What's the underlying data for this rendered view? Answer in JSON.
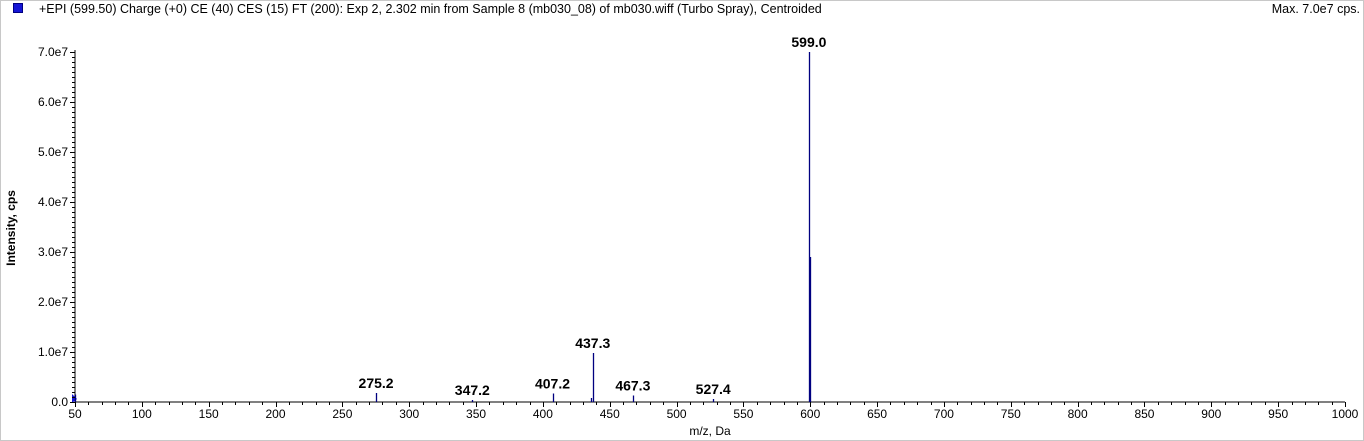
{
  "header": {
    "title": "+EPI (599.50) Charge (+0) CE (40) CES (15) FT (200): Exp 2, 2.302 min from Sample 8 (mb030_08) of mb030.wiff (Turbo Spray), Centroided",
    "max_label": "Max. 7.0e7 cps."
  },
  "colors": {
    "accent": "#000080",
    "legend_fill": "#1515d6"
  },
  "chart_data": {
    "type": "bar",
    "title": "+EPI (599.50) Charge (+0) CE (40) CES (15) FT (200): Exp 2, 2.302 min from Sample 8 (mb030_08) of mb030.wiff (Turbo Spray), Centroided",
    "xlabel": "m/z, Da",
    "ylabel": "Intensity, cps",
    "xlim": [
      50,
      1000
    ],
    "ylim": [
      0,
      70000000
    ],
    "xticks": [
      50,
      100,
      150,
      200,
      250,
      300,
      350,
      400,
      450,
      500,
      550,
      600,
      650,
      700,
      750,
      800,
      850,
      900,
      950,
      1000
    ],
    "yticks": [
      0,
      10000000,
      20000000,
      30000000,
      40000000,
      50000000,
      60000000,
      70000000
    ],
    "ytick_labels": [
      "0.0",
      "1.0e7",
      "2.0e7",
      "3.0e7",
      "4.0e7",
      "5.0e7",
      "6.0e7",
      "7.0e7"
    ],
    "grid": false,
    "peaks": [
      {
        "mz": 50.0,
        "intensity": 1500000
      },
      {
        "mz": 275.2,
        "intensity": 1800000,
        "label": "275.2"
      },
      {
        "mz": 347.2,
        "intensity": 400000,
        "label": "347.2"
      },
      {
        "mz": 407.2,
        "intensity": 1700000,
        "label": "407.2"
      },
      {
        "mz": 436.3,
        "intensity": 800000
      },
      {
        "mz": 437.3,
        "intensity": 9800000,
        "label": "437.3"
      },
      {
        "mz": 467.3,
        "intensity": 1300000,
        "label": "467.3"
      },
      {
        "mz": 527.4,
        "intensity": 600000,
        "label": "527.4"
      },
      {
        "mz": 599.0,
        "intensity": 70000000,
        "label": "599.0"
      },
      {
        "mz": 600.0,
        "intensity": 29000000
      }
    ]
  }
}
